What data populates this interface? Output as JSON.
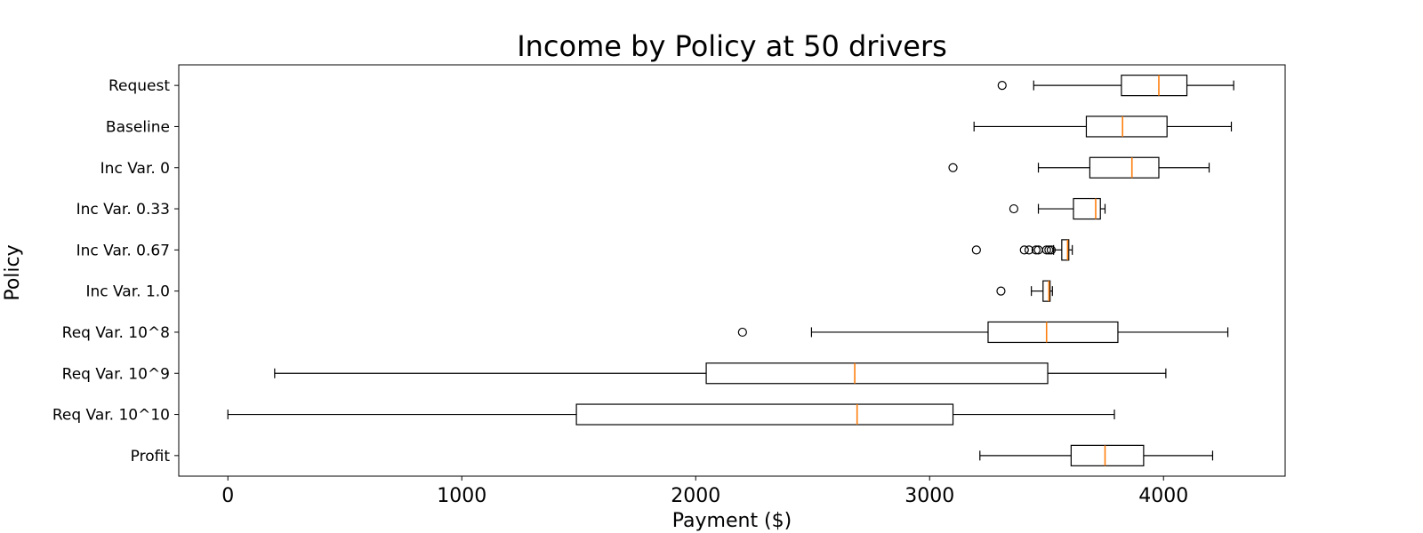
{
  "chart_data": {
    "type": "boxplot",
    "orientation": "horizontal",
    "title": "Income by Policy at 50 drivers",
    "xlabel": "Payment ($)",
    "ylabel": "Policy",
    "xlim": [
      -210,
      4520
    ],
    "xticks": [
      0,
      1000,
      2000,
      3000,
      4000
    ],
    "grid": false,
    "categories": [
      "Request",
      "Baseline",
      "Inc Var.  0",
      "Inc Var.  0.33",
      "Inc Var.  0.67",
      "Inc Var.  1.0",
      "Req Var.  10^8",
      "Req Var.  10^9",
      "Req Var.  10^10",
      "Profit"
    ],
    "boxes": [
      {
        "label": "Request",
        "whisker_low": 3445,
        "q1": 3820,
        "median": 3980,
        "q3": 4100,
        "whisker_high": 4300,
        "fliers": [
          3310
        ]
      },
      {
        "label": "Baseline",
        "whisker_low": 3190,
        "q1": 3670,
        "median": 3825,
        "q3": 4015,
        "whisker_high": 4290,
        "fliers": []
      },
      {
        "label": "Inc Var.  0",
        "whisker_low": 3465,
        "q1": 3685,
        "median": 3865,
        "q3": 3980,
        "whisker_high": 4195,
        "fliers": [
          3100
        ]
      },
      {
        "label": "Inc Var.  0.33",
        "whisker_low": 3465,
        "q1": 3615,
        "median": 3710,
        "q3": 3730,
        "whisker_high": 3750,
        "fliers": [
          3360
        ]
      },
      {
        "label": "Inc Var.  0.67",
        "whisker_low": 3530,
        "q1": 3565,
        "median": 3590,
        "q3": 3595,
        "whisker_high": 3610,
        "fliers": [
          3200,
          3405,
          3425,
          3455,
          3465,
          3500,
          3510,
          3520
        ]
      },
      {
        "label": "Inc Var.  1.0",
        "whisker_low": 3435,
        "q1": 3485,
        "median": 3510,
        "q3": 3515,
        "whisker_high": 3525,
        "fliers": [
          3305
        ]
      },
      {
        "label": "Req Var.  10^8",
        "whisker_low": 2495,
        "q1": 3250,
        "median": 3500,
        "q3": 3805,
        "whisker_high": 4275,
        "fliers": [
          2200
        ]
      },
      {
        "label": "Req Var.  10^9",
        "whisker_low": 200,
        "q1": 2045,
        "median": 2680,
        "q3": 3505,
        "whisker_high": 4010,
        "fliers": []
      },
      {
        "label": "Req Var.  10^10",
        "whisker_low": 0,
        "q1": 1490,
        "median": 2690,
        "q3": 3100,
        "whisker_high": 3790,
        "fliers": []
      },
      {
        "label": "Profit",
        "whisker_low": 3215,
        "q1": 3605,
        "median": 3750,
        "q3": 3915,
        "whisker_high": 4210,
        "fliers": []
      }
    ],
    "colors": {
      "box": "#000000",
      "median": "#ff7f0e",
      "flier": "#000000"
    }
  }
}
